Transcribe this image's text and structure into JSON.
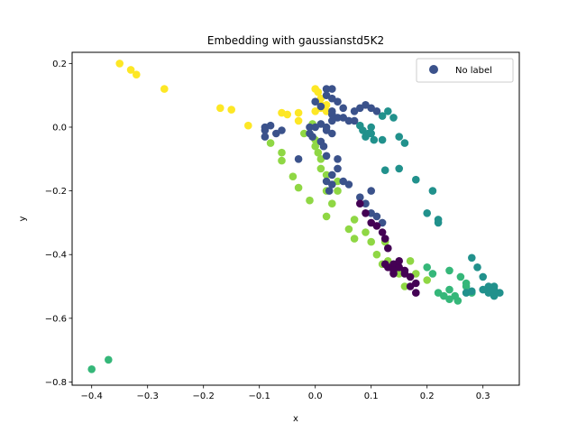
{
  "chart_data": {
    "type": "scatter",
    "title": "Embedding with gaussianstd5K2",
    "xlabel": "x",
    "ylabel": "y",
    "xlim": [
      -0.435,
      0.365
    ],
    "ylim": [
      -0.81,
      0.235
    ],
    "xticks": [
      -0.4,
      -0.3,
      -0.2,
      -0.1,
      0.0,
      0.1,
      0.2,
      0.3
    ],
    "xtick_labels": [
      "−0.4",
      "−0.3",
      "−0.2",
      "−0.1",
      "0.0",
      "0.1",
      "0.2",
      "0.3"
    ],
    "yticks": [
      0.2,
      0.0,
      -0.2,
      -0.4,
      -0.6,
      -0.8
    ],
    "ytick_labels": [
      "0.2",
      "0.0",
      "−0.2",
      "−0.4",
      "−0.6",
      "−0.8"
    ],
    "legend": {
      "label": "No label",
      "location": "upper right",
      "marker_color": "#3b528b"
    },
    "grid": false,
    "series": [
      {
        "color": "#fde725",
        "points": [
          [
            -0.35,
            0.2
          ],
          [
            -0.33,
            0.18
          ],
          [
            -0.32,
            0.165
          ],
          [
            -0.27,
            0.12
          ],
          [
            -0.17,
            0.06
          ],
          [
            -0.15,
            0.055
          ],
          [
            -0.12,
            0.005
          ],
          [
            -0.06,
            0.045
          ],
          [
            -0.05,
            0.04
          ],
          [
            -0.03,
            0.045
          ],
          [
            -0.03,
            0.02
          ],
          [
            0.0,
            0.12
          ],
          [
            0.005,
            0.11
          ],
          [
            0.01,
            0.09
          ],
          [
            0.01,
            0.07
          ],
          [
            0.01,
            0.06
          ],
          [
            0.02,
            0.07
          ],
          [
            0.02,
            0.05
          ],
          [
            0.0,
            0.05
          ]
        ]
      },
      {
        "color": "#8fd744",
        "points": [
          [
            -0.08,
            -0.05
          ],
          [
            -0.06,
            -0.08
          ],
          [
            -0.06,
            -0.105
          ],
          [
            -0.04,
            -0.155
          ],
          [
            -0.03,
            -0.19
          ],
          [
            -0.01,
            -0.23
          ],
          [
            -0.02,
            -0.02
          ],
          [
            -0.005,
            0.01
          ],
          [
            0.0,
            -0.04
          ],
          [
            0.0,
            -0.06
          ],
          [
            0.005,
            -0.08
          ],
          [
            0.01,
            -0.1
          ],
          [
            0.01,
            -0.13
          ],
          [
            0.02,
            -0.15
          ],
          [
            0.02,
            -0.2
          ],
          [
            0.02,
            -0.28
          ],
          [
            0.03,
            -0.24
          ],
          [
            0.04,
            -0.2
          ],
          [
            0.04,
            -0.17
          ],
          [
            0.06,
            -0.32
          ],
          [
            0.07,
            -0.35
          ],
          [
            0.07,
            -0.29
          ],
          [
            0.09,
            -0.33
          ],
          [
            0.1,
            -0.36
          ],
          [
            0.11,
            -0.4
          ],
          [
            0.125,
            -0.36
          ],
          [
            0.13,
            -0.42
          ],
          [
            0.12,
            -0.43
          ],
          [
            0.15,
            -0.46
          ],
          [
            0.17,
            -0.42
          ],
          [
            0.16,
            -0.5
          ],
          [
            0.18,
            -0.46
          ],
          [
            0.2,
            -0.48
          ]
        ]
      },
      {
        "color": "#35b779",
        "points": [
          [
            -0.4,
            -0.76
          ],
          [
            -0.37,
            -0.73
          ],
          [
            0.2,
            -0.44
          ],
          [
            0.21,
            -0.46
          ],
          [
            0.22,
            -0.52
          ],
          [
            0.24,
            -0.45
          ],
          [
            0.26,
            -0.47
          ],
          [
            0.23,
            -0.53
          ],
          [
            0.24,
            -0.51
          ],
          [
            0.24,
            -0.54
          ],
          [
            0.25,
            -0.53
          ],
          [
            0.255,
            -0.545
          ],
          [
            0.27,
            -0.5
          ],
          [
            0.27,
            -0.49
          ],
          [
            0.28,
            -0.52
          ]
        ]
      },
      {
        "color": "#21918c",
        "points": [
          [
            0.1,
            -0.02
          ],
          [
            0.12,
            -0.04
          ],
          [
            0.15,
            -0.03
          ],
          [
            0.16,
            -0.05
          ],
          [
            0.15,
            -0.13
          ],
          [
            0.125,
            -0.135
          ],
          [
            0.18,
            -0.165
          ],
          [
            0.2,
            -0.27
          ],
          [
            0.21,
            -0.2
          ],
          [
            0.22,
            -0.29
          ],
          [
            0.22,
            -0.3
          ],
          [
            0.28,
            -0.41
          ],
          [
            0.29,
            -0.44
          ],
          [
            0.3,
            -0.47
          ],
          [
            0.31,
            -0.52
          ],
          [
            0.32,
            -0.5
          ],
          [
            0.32,
            -0.53
          ],
          [
            0.33,
            -0.52
          ],
          [
            0.32,
            -0.51
          ],
          [
            0.31,
            -0.5
          ],
          [
            0.27,
            -0.52
          ],
          [
            0.28,
            -0.515
          ],
          [
            0.3,
            -0.51
          ],
          [
            0.13,
            0.05
          ],
          [
            0.14,
            0.03
          ],
          [
            0.12,
            0.035
          ],
          [
            0.1,
            0.0
          ],
          [
            0.105,
            -0.04
          ],
          [
            0.08,
            0.005
          ],
          [
            0.085,
            -0.01
          ],
          [
            0.09,
            -0.03
          ],
          [
            0.095,
            -0.02
          ]
        ]
      },
      {
        "color": "#3b528b",
        "points": [
          [
            -0.09,
            0.0
          ],
          [
            -0.09,
            -0.01
          ],
          [
            -0.09,
            -0.03
          ],
          [
            -0.08,
            0.005
          ],
          [
            -0.07,
            -0.02
          ],
          [
            -0.06,
            -0.01
          ],
          [
            -0.03,
            -0.1
          ],
          [
            -0.01,
            0.0
          ],
          [
            -0.01,
            -0.02
          ],
          [
            0.0,
            0.0
          ],
          [
            0.01,
            0.01
          ],
          [
            0.02,
            0.0
          ],
          [
            0.02,
            -0.01
          ],
          [
            0.03,
            -0.02
          ],
          [
            0.03,
            0.02
          ],
          [
            0.03,
            0.04
          ],
          [
            0.03,
            0.05
          ],
          [
            0.04,
            0.03
          ],
          [
            0.02,
            0.1
          ],
          [
            0.02,
            0.12
          ],
          [
            0.03,
            0.12
          ],
          [
            0.03,
            0.09
          ],
          [
            0.04,
            0.08
          ],
          [
            0.05,
            0.06
          ],
          [
            0.05,
            0.03
          ],
          [
            0.06,
            0.02
          ],
          [
            0.07,
            0.02
          ],
          [
            0.07,
            0.05
          ],
          [
            0.08,
            0.06
          ],
          [
            0.09,
            0.07
          ],
          [
            0.1,
            0.06
          ],
          [
            0.11,
            0.05
          ],
          [
            0.03,
            -0.15
          ],
          [
            0.04,
            -0.1
          ],
          [
            0.04,
            -0.13
          ],
          [
            0.05,
            -0.17
          ],
          [
            0.06,
            -0.18
          ],
          [
            0.08,
            -0.22
          ],
          [
            0.09,
            -0.24
          ],
          [
            0.1,
            -0.27
          ],
          [
            0.11,
            -0.28
          ],
          [
            0.1,
            -0.2
          ],
          [
            0.12,
            -0.3
          ],
          [
            0.02,
            -0.17
          ],
          [
            0.025,
            -0.2
          ],
          [
            0.03,
            -0.18
          ],
          [
            0.0,
            0.08
          ],
          [
            0.01,
            0.065
          ],
          [
            -0.005,
            -0.03
          ],
          [
            0.01,
            -0.045
          ],
          [
            0.015,
            -0.06
          ],
          [
            0.02,
            -0.09
          ]
        ]
      },
      {
        "color": "#440154",
        "points": [
          [
            0.08,
            -0.24
          ],
          [
            0.09,
            -0.27
          ],
          [
            0.1,
            -0.3
          ],
          [
            0.11,
            -0.31
          ],
          [
            0.12,
            -0.33
          ],
          [
            0.125,
            -0.35
          ],
          [
            0.13,
            -0.38
          ],
          [
            0.14,
            -0.43
          ],
          [
            0.15,
            -0.44
          ],
          [
            0.16,
            -0.45
          ],
          [
            0.17,
            -0.47
          ],
          [
            0.17,
            -0.5
          ],
          [
            0.18,
            -0.49
          ],
          [
            0.18,
            -0.52
          ],
          [
            0.15,
            -0.42
          ],
          [
            0.14,
            -0.45
          ],
          [
            0.13,
            -0.44
          ],
          [
            0.125,
            -0.43
          ],
          [
            0.16,
            -0.46
          ],
          [
            0.14,
            -0.46
          ]
        ]
      }
    ]
  }
}
